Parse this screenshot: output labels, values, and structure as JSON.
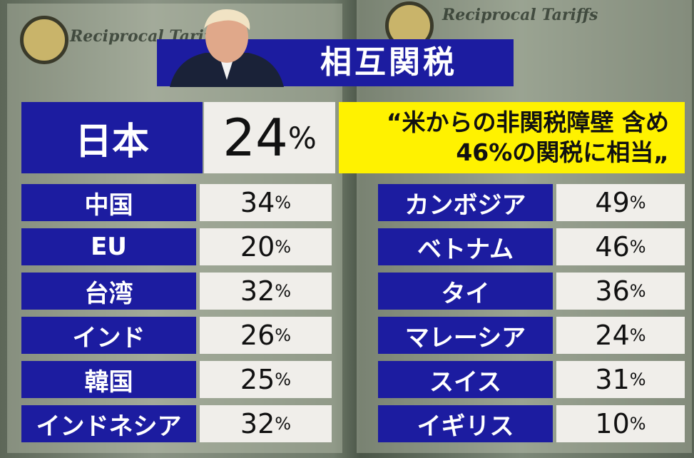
{
  "background": {
    "headings": [
      "Reciprocal Tariffs",
      "Reciprocal Tariffs"
    ]
  },
  "title": "相互関税",
  "featured": {
    "name": "日本",
    "rate": 24
  },
  "percent_sign": "%",
  "quote": [
    "“米からの非関税障壁 含め",
    "46%の関税に相当„"
  ],
  "left_rows": [
    {
      "name": "中国",
      "rate": 34
    },
    {
      "name": "EU",
      "rate": 20
    },
    {
      "name": "台湾",
      "rate": 32
    },
    {
      "name": "インド",
      "rate": 26
    },
    {
      "name": "韓国",
      "rate": 25
    },
    {
      "name": "インドネシア",
      "rate": 32
    }
  ],
  "right_rows": [
    {
      "name": "カンボジア",
      "rate": 49
    },
    {
      "name": "ベトナム",
      "rate": 46
    },
    {
      "name": "タイ",
      "rate": 36
    },
    {
      "name": "マレーシア",
      "rate": 24
    },
    {
      "name": "スイス",
      "rate": 31
    },
    {
      "name": "イギリス",
      "rate": 10
    }
  ]
}
